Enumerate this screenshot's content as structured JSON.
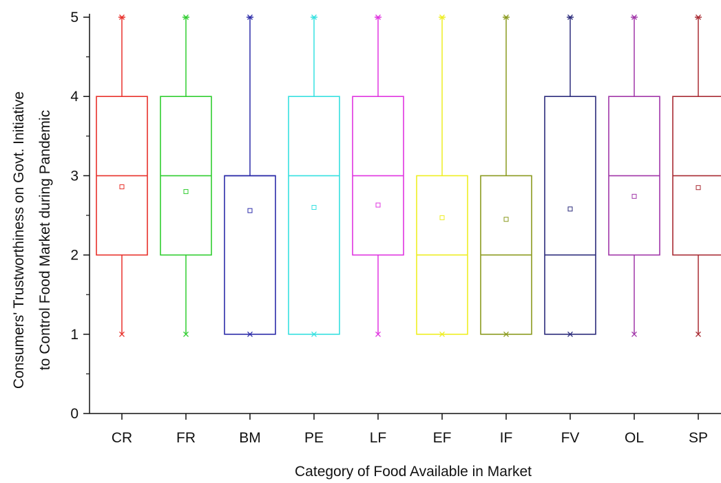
{
  "chart_data": {
    "type": "box",
    "xlabel": "Category of Food Available in Market",
    "ylabel_lines": [
      "Consumers' Trustworthiness on Govt. Initiative",
      "to Control Food Market during Pandemic"
    ],
    "ylim": [
      0,
      5
    ],
    "yticks": [
      "0",
      "1",
      "2",
      "3",
      "4",
      "5"
    ],
    "grid": false,
    "categories": [
      "CR",
      "FR",
      "BM",
      "PE",
      "LF",
      "EF",
      "IF",
      "FV",
      "OL",
      "SP"
    ],
    "series": [
      {
        "category": "CR",
        "color": "#e8302a",
        "min": 1,
        "q1": 2,
        "median": 3,
        "q3": 4,
        "max": 5,
        "mean": 2.86
      },
      {
        "category": "FR",
        "color": "#2fcd2f",
        "min": 1,
        "q1": 2,
        "median": 3,
        "q3": 4,
        "max": 5,
        "mean": 2.8
      },
      {
        "category": "BM",
        "color": "#2b2ba8",
        "min": 1,
        "q1": 1,
        "median": 3,
        "q3": 3,
        "max": 5,
        "mean": 2.56
      },
      {
        "category": "PE",
        "color": "#35e0e0",
        "min": 1,
        "q1": 1,
        "median": 3,
        "q3": 4,
        "max": 5,
        "mean": 2.6
      },
      {
        "category": "LF",
        "color": "#e034e0",
        "min": 1,
        "q1": 2,
        "median": 3,
        "q3": 4,
        "max": 5,
        "mean": 2.63
      },
      {
        "category": "EF",
        "color": "#eeee22",
        "min": 1,
        "q1": 1,
        "median": 2,
        "q3": 3,
        "max": 5,
        "mean": 2.47
      },
      {
        "category": "IF",
        "color": "#8a9a1e",
        "min": 1,
        "q1": 1,
        "median": 2,
        "q3": 3,
        "max": 5,
        "mean": 2.45
      },
      {
        "category": "FV",
        "color": "#2a2a7a",
        "min": 1,
        "q1": 1,
        "median": 2,
        "q3": 4,
        "max": 5,
        "mean": 2.58
      },
      {
        "category": "OL",
        "color": "#a035a8",
        "min": 1,
        "q1": 2,
        "median": 3,
        "q3": 4,
        "max": 5,
        "mean": 2.74
      },
      {
        "category": "SP",
        "color": "#a82a32",
        "min": 1,
        "q1": 2,
        "median": 3,
        "q3": 4,
        "max": 5,
        "mean": 2.85
      }
    ]
  }
}
